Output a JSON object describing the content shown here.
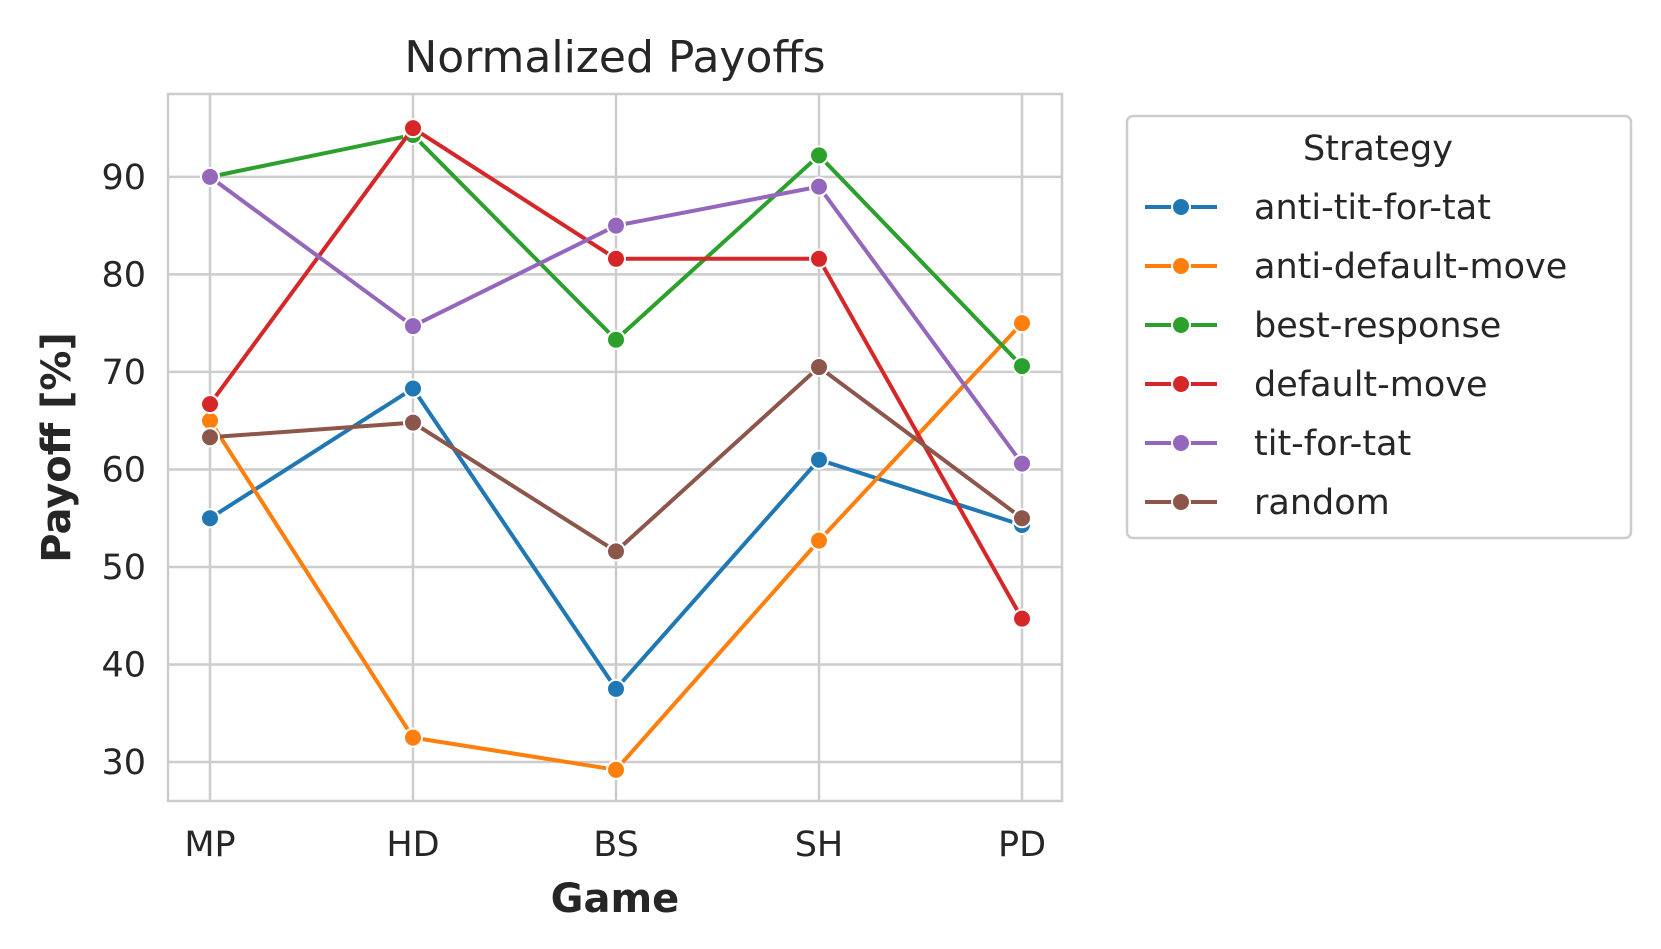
{
  "chart_data": {
    "type": "line",
    "title": "Normalized Payoffs",
    "xlabel": "Game",
    "ylabel": "Payoff [%]",
    "categories": [
      "MP",
      "HD",
      "BS",
      "SH",
      "PD"
    ],
    "ylim": [
      26,
      98.5
    ],
    "yticks": [
      30,
      40,
      50,
      60,
      70,
      80,
      90
    ],
    "grid": true,
    "legend": {
      "title": "Strategy",
      "placement": "outside-right"
    },
    "series": [
      {
        "name": "anti-tit-for-tat",
        "color": "#1f77b4",
        "values": [
          55.0,
          68.3,
          37.5,
          61.0,
          54.3
        ]
      },
      {
        "name": "anti-default-move",
        "color": "#ff7f0e",
        "values": [
          65.0,
          32.5,
          29.2,
          52.7,
          75.0
        ]
      },
      {
        "name": "best-response",
        "color": "#2ca02c",
        "values": [
          90.0,
          94.3,
          73.3,
          92.2,
          70.6
        ]
      },
      {
        "name": "default-move",
        "color": "#d62728",
        "values": [
          66.7,
          95.0,
          81.6,
          81.6,
          44.7
        ]
      },
      {
        "name": "tit-for-tat",
        "color": "#9467bd",
        "values": [
          90.0,
          74.7,
          85.0,
          89.0,
          60.6
        ]
      },
      {
        "name": "random",
        "color": "#8c564b",
        "values": [
          63.3,
          64.8,
          51.6,
          70.5,
          55.0
        ]
      }
    ]
  }
}
